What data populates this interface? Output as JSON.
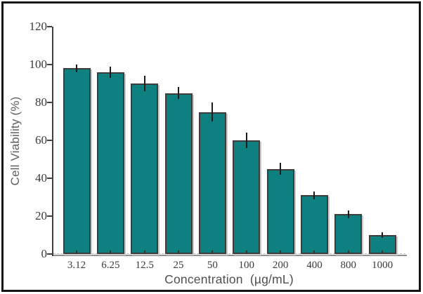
{
  "window": {
    "background_color": "#ffffff",
    "frame_border_color": "#141414"
  },
  "chart_data": {
    "type": "bar",
    "title": "",
    "xlabel": "Concentration  (µg/mL)",
    "ylabel": "Cell Viability (%)",
    "categories": [
      "3.12",
      "6.25",
      "12.5",
      "25",
      "50",
      "100",
      "200",
      "400",
      "800",
      "1000"
    ],
    "values": [
      98,
      96,
      90,
      85,
      75,
      60,
      45,
      31,
      21,
      10
    ],
    "errors": [
      2,
      3,
      4,
      3,
      5,
      4,
      3,
      2,
      2,
      1.5
    ],
    "yticks": [
      0,
      20,
      40,
      60,
      80,
      100,
      120
    ],
    "ylim": [
      0,
      120
    ],
    "grid": false,
    "legend_position": "none",
    "bar_color": "#0e8080",
    "bar_border_color": "#3d3d3d",
    "error_bar_color": "#1c1c1c",
    "axis_color": "#3f3f3f"
  }
}
